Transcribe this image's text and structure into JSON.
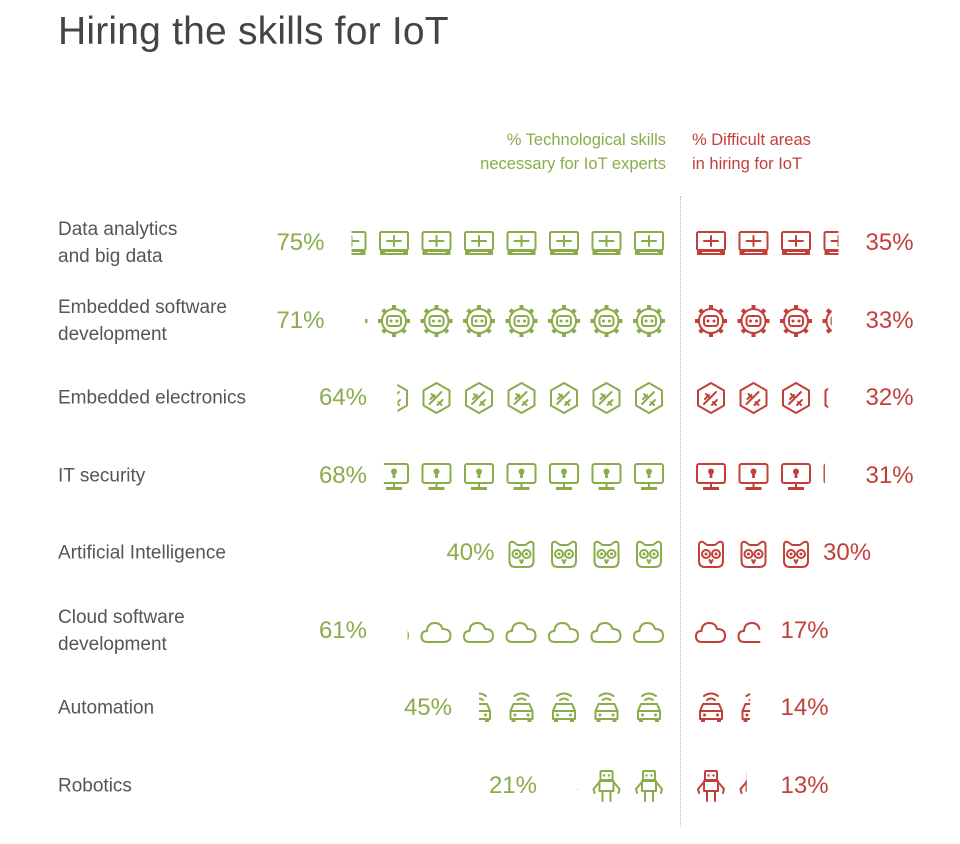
{
  "title": "Hiring the skills for IoT",
  "header_left": [
    "% Technological skills",
    "necessary for IoT experts"
  ],
  "header_right": [
    "% Difficult areas",
    "in hiring for IoT"
  ],
  "colors": {
    "green": "#8aac4a",
    "red": "#c2403a",
    "text": "#555555",
    "title": "#444444"
  },
  "chart_data": {
    "type": "bar",
    "categories": [
      "Data analytics\nand big data",
      "Embedded software\ndevelopment",
      "Embedded electronics",
      "IT security",
      "Artificial Intelligence",
      "Cloud software\ndevelopment",
      "Automation",
      "Robotics"
    ],
    "icons": [
      "server-icon",
      "gear-chip-icon",
      "hexagon-circuit-icon",
      "monitor-lock-icon",
      "owl-face-icon",
      "cloud-icon",
      "car-sensor-icon",
      "robot-icon"
    ],
    "series": [
      {
        "name": "% Technological skills necessary for IoT experts",
        "values": [
          75,
          71,
          64,
          68,
          40,
          61,
          45,
          21
        ],
        "labels": [
          "75%",
          "71%",
          "64%",
          "68%",
          "40%",
          "61%",
          "45%",
          "21%"
        ]
      },
      {
        "name": "% Difficult areas in hiring for IoT",
        "values": [
          35,
          33,
          32,
          31,
          30,
          17,
          14,
          13
        ],
        "labels": [
          "35%",
          "33%",
          "32%",
          "31%",
          "30%",
          "17%",
          "14%",
          "13%"
        ]
      }
    ],
    "unit_per_icon": 10
  }
}
